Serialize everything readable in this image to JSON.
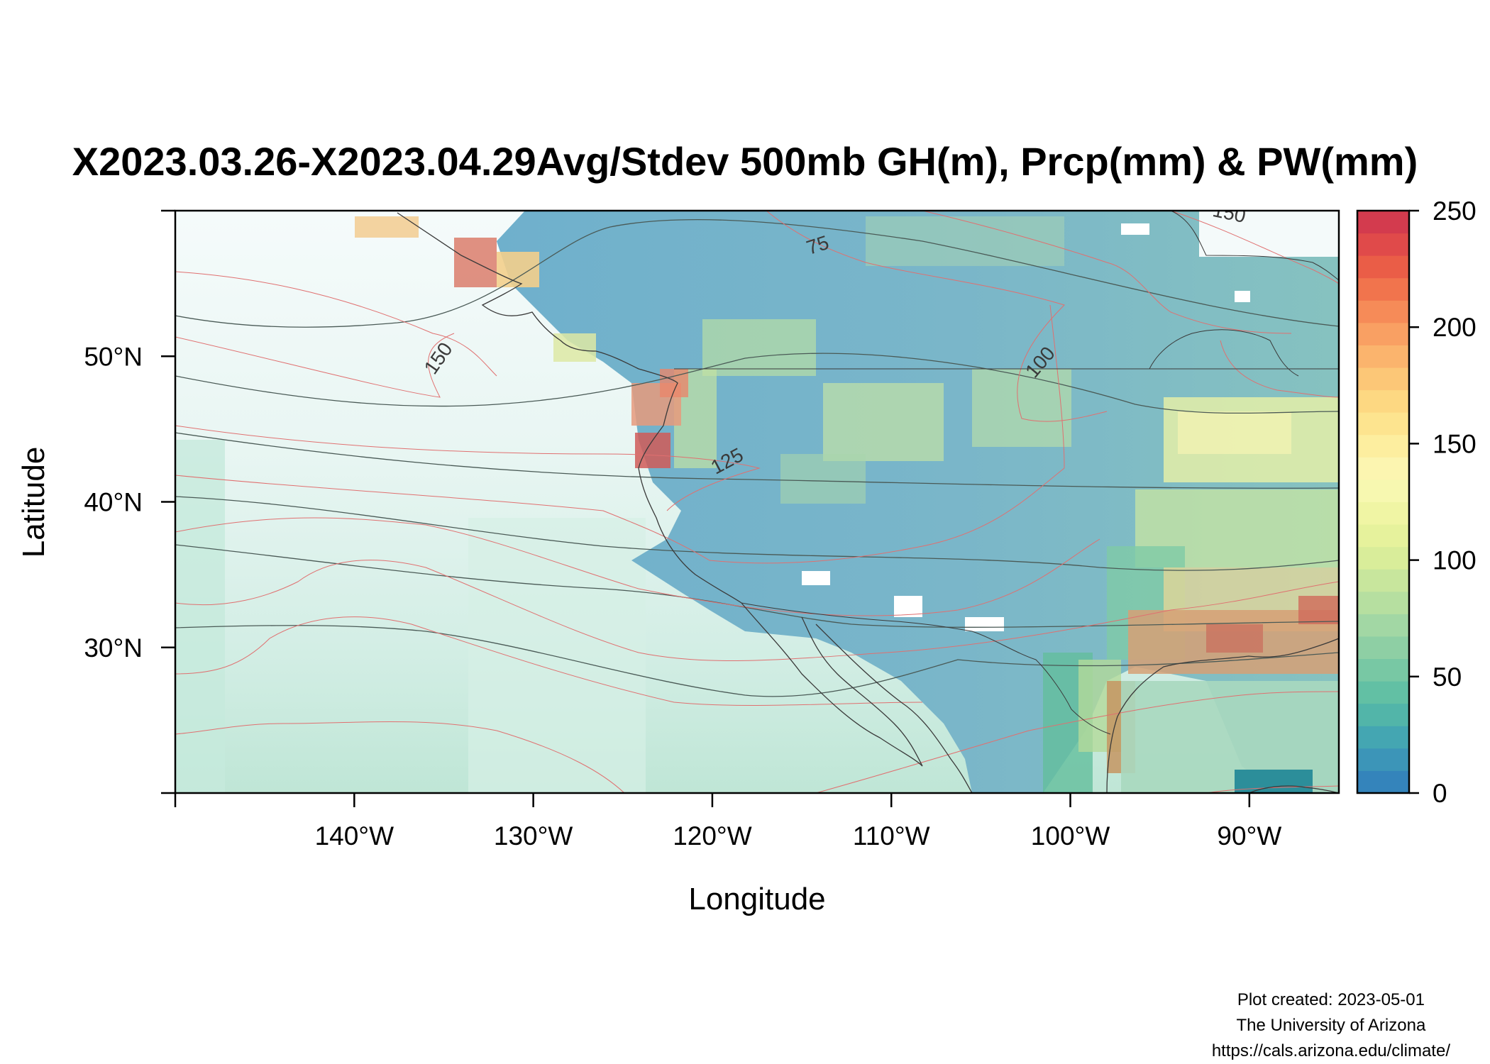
{
  "title": "X2023.03.26-X2023.04.29Avg/Stdev 500mb GH(m), Prcp(mm) & PW(mm)",
  "map": {
    "x_axis": {
      "label": "Longitude",
      "range": [
        -150,
        -85
      ],
      "ticks": [
        {
          "value": -140,
          "label": "140°W"
        },
        {
          "value": -130,
          "label": "130°W"
        },
        {
          "value": -120,
          "label": "120°W"
        },
        {
          "value": -110,
          "label": "110°W"
        },
        {
          "value": -100,
          "label": "100°W"
        },
        {
          "value": -90,
          "label": "90°W"
        }
      ]
    },
    "y_axis": {
      "label": "Latitude",
      "range": [
        20,
        60
      ],
      "ticks": [
        {
          "value": 30,
          "label": "30°N"
        },
        {
          "value": 40,
          "label": "40°N"
        },
        {
          "value": 50,
          "label": "50°N"
        }
      ]
    },
    "contour_labels": [
      {
        "text": "150",
        "lon": -135,
        "lat": 49.6,
        "angle": -55
      },
      {
        "text": "75",
        "lon": -114,
        "lat": 57.2,
        "angle": -18
      },
      {
        "text": "100",
        "lon": -101.4,
        "lat": 49.3,
        "angle": -50
      },
      {
        "text": "125",
        "lon": -119,
        "lat": 42.4,
        "angle": -28
      },
      {
        "text": "150",
        "lon": -91.2,
        "lat": 59.4,
        "angle": 12
      }
    ]
  },
  "legend": {
    "range": [
      0,
      250
    ],
    "ticks": [
      {
        "value": 0,
        "label": "0"
      },
      {
        "value": 50,
        "label": "50"
      },
      {
        "value": 100,
        "label": "100"
      },
      {
        "value": 150,
        "label": "150"
      },
      {
        "value": 200,
        "label": "200"
      },
      {
        "value": 250,
        "label": "250"
      }
    ],
    "colors": [
      "#3484bb",
      "#3c95b8",
      "#44a6b2",
      "#52b5a9",
      "#62c0a4",
      "#78c8a4",
      "#8ecfa4",
      "#a2d7a4",
      "#b6dfa0",
      "#c8e69d",
      "#d9ed9a",
      "#e6f29c",
      "#f0f5a4",
      "#f7f8b0",
      "#fcf5b0",
      "#fdee9f",
      "#fde48f",
      "#fdd882",
      "#fcc777",
      "#fbb46d",
      "#f9a063",
      "#f68b58",
      "#f1744d",
      "#ea5d47",
      "#e04a4a",
      "#d33b4e"
    ]
  },
  "colors": {
    "contour_gh": "#4a5a56",
    "contour_pw": "#e07070",
    "coastline": "#3a3a3a"
  },
  "credits": {
    "line1": "Plot created: 2023-05-01",
    "line2": "The University of Arizona",
    "line3": "https://cals.arizona.edu/climate/"
  }
}
